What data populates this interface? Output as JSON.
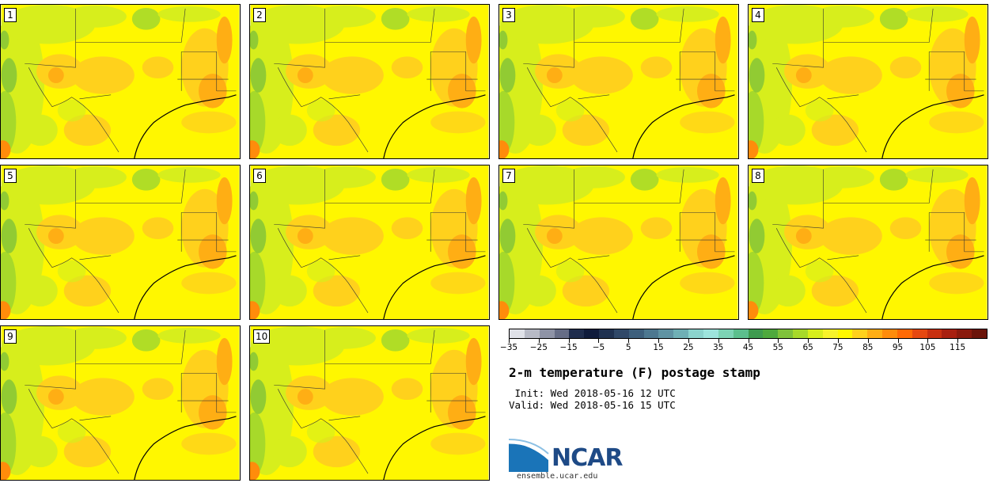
{
  "panels": [
    {
      "label": "1"
    },
    {
      "label": "2"
    },
    {
      "label": "3"
    },
    {
      "label": "4"
    },
    {
      "label": "5"
    },
    {
      "label": "6"
    },
    {
      "label": "7"
    },
    {
      "label": "8"
    },
    {
      "label": "9"
    },
    {
      "label": "10"
    }
  ],
  "colorbar": {
    "colors": [
      "#dfe1e8",
      "#b7bac6",
      "#8e93a6",
      "#666d86",
      "#1f2d4d",
      "#0f1b3b",
      "#1f3150",
      "#304868",
      "#3d5f7c",
      "#4d7890",
      "#5f93a3",
      "#6fb0b5",
      "#8bd3cd",
      "#9de4dc",
      "#7dd3b5",
      "#5cbf8d",
      "#3e9b4f",
      "#4ea93d",
      "#7fc23a",
      "#a7d92a",
      "#d7ee1c",
      "#f7f32a",
      "#fff700",
      "#ffd11c",
      "#ffae14",
      "#ff8c0b",
      "#ff6a05",
      "#e64810",
      "#c83010",
      "#a82010",
      "#8a1a0d",
      "#6b140a"
    ],
    "ticks": [
      "−35",
      "−25",
      "−15",
      "−5",
      "5",
      "15",
      "25",
      "35",
      "45",
      "55",
      "65",
      "75",
      "85",
      "95",
      "105",
      "115"
    ]
  },
  "title": "2-m temperature (F) postage stamp",
  "init": " Init: Wed 2018-05-16 12 UTC",
  "valid": "Valid: Wed 2018-05-16 15 UTC",
  "logo": {
    "text": "NCAR",
    "url_text": "ensemble.ucar.edu"
  }
}
